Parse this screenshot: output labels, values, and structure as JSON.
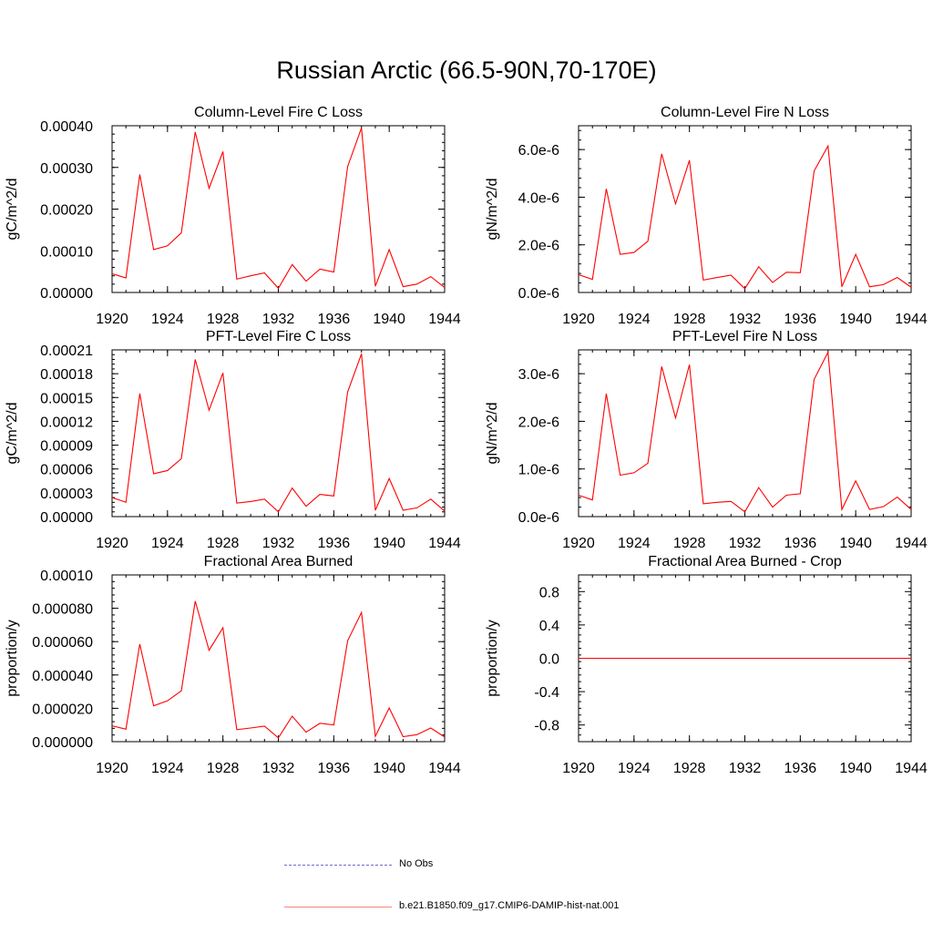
{
  "title": "Russian Arctic (66.5-90N,70-170E)",
  "chart_data": [
    {
      "type": "line",
      "title": "Column-Level Fire C Loss",
      "ylabel": "gC/m^2/d",
      "xlim": [
        1920,
        1944
      ],
      "ylim": [
        0,
        0.0004
      ],
      "xticks": [
        1920,
        1924,
        1928,
        1932,
        1936,
        1940,
        1944
      ],
      "yticks": [
        0,
        0.0001,
        0.0002,
        0.0003,
        0.0004
      ],
      "yticklabels": [
        "0.00000",
        "0.00010",
        "0.00020",
        "0.00030",
        "0.00040"
      ],
      "x": [
        1920,
        1921,
        1922,
        1923,
        1924,
        1925,
        1926,
        1927,
        1928,
        1929,
        1930,
        1931,
        1932,
        1933,
        1934,
        1935,
        1936,
        1937,
        1938,
        1939,
        1940,
        1941,
        1942,
        1943,
        1944
      ],
      "series": [
        {
          "name": "b.e21.B1850.f09_g17.CMIP6-DAMIP-hist-nat.001",
          "color": "#ff0000",
          "values": [
            4.5e-05,
            3.5e-05,
            0.000283,
            0.000103,
            0.000112,
            0.000143,
            0.000385,
            0.00025,
            0.000338,
            3.2e-05,
            4e-05,
            4.7e-05,
            1e-05,
            6.7e-05,
            2.7e-05,
            5.6e-05,
            4.9e-05,
            0.000302,
            0.000395,
            1.5e-05,
            0.000103,
            1.4e-05,
            2e-05,
            3.8e-05,
            1.2e-05
          ]
        }
      ]
    },
    {
      "type": "line",
      "title": "Column-Level Fire N Loss",
      "ylabel": "gN/m^2/d",
      "xlim": [
        1920,
        1944
      ],
      "ylim": [
        0,
        7e-06
      ],
      "xticks": [
        1920,
        1924,
        1928,
        1932,
        1936,
        1940,
        1944
      ],
      "yticks": [
        0,
        2e-06,
        4e-06,
        6e-06
      ],
      "yticklabels": [
        "0.0e-6",
        "2.0e-6",
        "4.0e-6",
        "6.0e-6"
      ],
      "x": [
        1920,
        1921,
        1922,
        1923,
        1924,
        1925,
        1926,
        1927,
        1928,
        1929,
        1930,
        1931,
        1932,
        1933,
        1934,
        1935,
        1936,
        1937,
        1938,
        1939,
        1940,
        1941,
        1942,
        1943,
        1944
      ],
      "series": [
        {
          "name": "b.e21.B1850.f09_g17.CMIP6-DAMIP-hist-nat.001",
          "color": "#ff0000",
          "values": [
            7.5e-07,
            5.5e-07,
            4.35e-06,
            1.6e-06,
            1.68e-06,
            2.15e-06,
            5.82e-06,
            3.72e-06,
            5.55e-06,
            5.2e-07,
            6.3e-07,
            7.3e-07,
            1.6e-07,
            1.08e-06,
            4.2e-07,
            8.5e-07,
            8.3e-07,
            5.1e-06,
            6.15e-06,
            2.4e-07,
            1.6e-06,
            2.4e-07,
            3.3e-07,
            6.3e-07,
            2.2e-07
          ]
        }
      ]
    },
    {
      "type": "line",
      "title": "PFT-Level Fire C Loss",
      "ylabel": "gC/m^2/d",
      "xlim": [
        1920,
        1944
      ],
      "ylim": [
        0,
        0.00021
      ],
      "xticks": [
        1920,
        1924,
        1928,
        1932,
        1936,
        1940,
        1944
      ],
      "yticks": [
        0,
        3e-05,
        6e-05,
        9e-05,
        0.00012,
        0.00015,
        0.00018,
        0.00021
      ],
      "yticklabels": [
        "0.00000",
        "0.00003",
        "0.00006",
        "0.00009",
        "0.00012",
        "0.00015",
        "0.00018",
        "0.00021"
      ],
      "x": [
        1920,
        1921,
        1922,
        1923,
        1924,
        1925,
        1926,
        1927,
        1928,
        1929,
        1930,
        1931,
        1932,
        1933,
        1934,
        1935,
        1936,
        1937,
        1938,
        1939,
        1940,
        1941,
        1942,
        1943,
        1944
      ],
      "series": [
        {
          "name": "b.e21.B1850.f09_g17.CMIP6-DAMIP-hist-nat.001",
          "color": "#ff0000",
          "values": [
            2.4e-05,
            1.8e-05,
            0.000155,
            5.4e-05,
            5.8e-05,
            7.3e-05,
            0.000198,
            0.000134,
            0.000181,
            1.7e-05,
            1.9e-05,
            2.2e-05,
            6e-06,
            3.6e-05,
            1.3e-05,
            2.8e-05,
            2.6e-05,
            0.000157,
            0.000205,
            8e-06,
            4.8e-05,
            8e-06,
            1.1e-05,
            2.2e-05,
            7e-06
          ]
        }
      ]
    },
    {
      "type": "line",
      "title": "PFT-Level Fire N Loss",
      "ylabel": "gN/m^2/d",
      "xlim": [
        1920,
        1944
      ],
      "ylim": [
        0,
        3.5e-06
      ],
      "xticks": [
        1920,
        1924,
        1928,
        1932,
        1936,
        1940,
        1944
      ],
      "yticks": [
        0,
        1e-06,
        2e-06,
        3e-06
      ],
      "yticklabels": [
        "0.0e-6",
        "1.0e-6",
        "2.0e-6",
        "3.0e-6"
      ],
      "x": [
        1920,
        1921,
        1922,
        1923,
        1924,
        1925,
        1926,
        1927,
        1928,
        1929,
        1930,
        1931,
        1932,
        1933,
        1934,
        1935,
        1936,
        1937,
        1938,
        1939,
        1940,
        1941,
        1942,
        1943,
        1944
      ],
      "series": [
        {
          "name": "b.e21.B1850.f09_g17.CMIP6-DAMIP-hist-nat.001",
          "color": "#ff0000",
          "values": [
            4.5e-07,
            3.5e-07,
            2.58e-06,
            8.7e-07,
            9.2e-07,
            1.12e-06,
            3.15e-06,
            2.07e-06,
            3.19e-06,
            2.7e-07,
            3e-07,
            3.2e-07,
            1e-07,
            6.1e-07,
            2e-07,
            4.5e-07,
            4.8e-07,
            2.88e-06,
            3.45e-06,
            1.5e-07,
            7.5e-07,
            1.5e-07,
            2.1e-07,
            4.1e-07,
            1.5e-07
          ]
        }
      ]
    },
    {
      "type": "line",
      "title": "Fractional Area Burned",
      "ylabel": "proportion/y",
      "xlim": [
        1920,
        1944
      ],
      "ylim": [
        0,
        0.0001
      ],
      "xticks": [
        1920,
        1924,
        1928,
        1932,
        1936,
        1940,
        1944
      ],
      "yticks": [
        0,
        2e-05,
        4e-05,
        6e-05,
        8e-05,
        0.0001
      ],
      "yticklabels": [
        "0.000000",
        "0.000020",
        "0.000040",
        "0.000060",
        "0.000080",
        "0.00010"
      ],
      "x": [
        1920,
        1921,
        1922,
        1923,
        1924,
        1925,
        1926,
        1927,
        1928,
        1929,
        1930,
        1931,
        1932,
        1933,
        1934,
        1935,
        1936,
        1937,
        1938,
        1939,
        1940,
        1941,
        1942,
        1943,
        1944
      ],
      "series": [
        {
          "name": "b.e21.B1850.f09_g17.CMIP6-DAMIP-hist-nat.001",
          "color": "#ff0000",
          "values": [
            9.5e-06,
            7.5e-06,
            5.85e-05,
            2.15e-05,
            2.45e-05,
            3.05e-05,
            8.43e-05,
            5.48e-05,
            6.83e-05,
            7.2e-06,
            8.2e-06,
            9.3e-06,
            2.3e-06,
            1.53e-05,
            5.7e-06,
            1.1e-05,
            1e-05,
            6.05e-05,
            7.75e-05,
            3.2e-06,
            2.02e-05,
            3e-06,
            4.2e-06,
            8.2e-06,
            2.8e-06
          ]
        }
      ]
    },
    {
      "type": "line",
      "title": "Fractional Area Burned - Crop",
      "ylabel": "proportion/y",
      "xlim": [
        1920,
        1944
      ],
      "ylim": [
        -1,
        1
      ],
      "xticks": [
        1920,
        1924,
        1928,
        1932,
        1936,
        1940,
        1944
      ],
      "yticks": [
        -0.8,
        -0.4,
        0,
        0.4,
        0.8
      ],
      "yticklabels": [
        "-0.8",
        "-0.4",
        "0.0",
        "0.4",
        "0.8"
      ],
      "x": [
        1920,
        1921,
        1922,
        1923,
        1924,
        1925,
        1926,
        1927,
        1928,
        1929,
        1930,
        1931,
        1932,
        1933,
        1934,
        1935,
        1936,
        1937,
        1938,
        1939,
        1940,
        1941,
        1942,
        1943,
        1944
      ],
      "series": [
        {
          "name": "b.e21.B1850.f09_g17.CMIP6-DAMIP-hist-nat.001",
          "color": "#ff0000",
          "values": [
            0,
            0,
            0,
            0,
            0,
            0,
            0,
            0,
            0,
            0,
            0,
            0,
            0,
            0,
            0,
            0,
            0,
            0,
            0,
            0,
            0,
            0,
            0,
            0,
            0
          ]
        }
      ]
    }
  ],
  "legend": {
    "placement": "bottom-center",
    "items": [
      {
        "label": "No Obs",
        "color": "#6b6bd6",
        "style": "dashed"
      },
      {
        "label": "b.e21.B1850.f09_g17.CMIP6-DAMIP-hist-nat.001",
        "color": "#ff8080",
        "style": "solid"
      }
    ]
  }
}
